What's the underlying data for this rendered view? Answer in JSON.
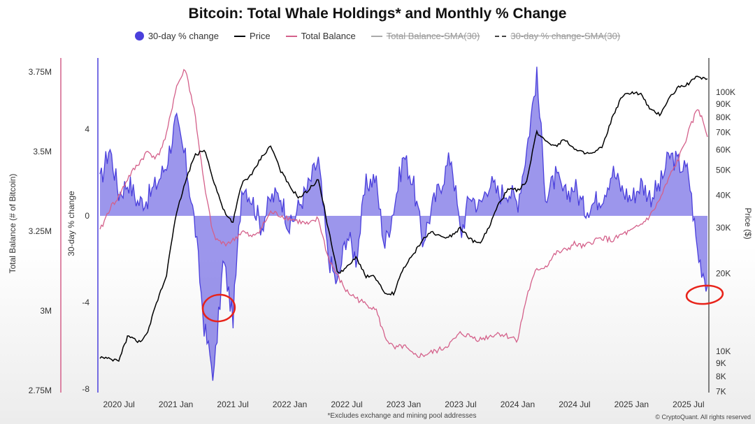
{
  "chart_data": {
    "type": "area",
    "title": "Bitcoin: Total Whale Holdings* and Monthly % Change",
    "legend": {
      "placement": "top",
      "items": [
        {
          "label": "30-day % change",
          "color": "#4a3fdc",
          "style": "dot",
          "visible": true
        },
        {
          "label": "Price",
          "color": "#000000",
          "style": "line",
          "visible": true
        },
        {
          "label": "Total Balance",
          "color": "#d4608a",
          "style": "line",
          "visible": true
        },
        {
          "label": "Total Balance-SMA(30)",
          "color": "#aaaaaa",
          "style": "line",
          "visible": false
        },
        {
          "label": "30-day % change-SMA(30)",
          "color": "#444444",
          "style": "dash",
          "visible": false
        }
      ]
    },
    "x_ticks": [
      "2020 Jul",
      "2021 Jan",
      "2021 Jul",
      "2022 Jan",
      "2022 Jul",
      "2023 Jan",
      "2023 Jul",
      "2024 Jan",
      "2024 Jul",
      "2025 Jan",
      "2025 Jul"
    ],
    "axes": {
      "balance": {
        "title": "Total Balance (# of Bitcoin)",
        "ticks": [
          "3.75M",
          "3.5M",
          "3.25M",
          "3M",
          "2.75M"
        ],
        "range": [
          2750000,
          3750000
        ],
        "color": "#d4608a"
      },
      "pct_change": {
        "title": "30-day % change",
        "ticks": [
          "4",
          "0",
          "-4",
          "-8"
        ],
        "range": [
          -8,
          4
        ],
        "color": "#4a3fdc"
      },
      "price": {
        "title": "Price ($)",
        "scale": "log",
        "ticks": [
          "100K",
          "90K",
          "80K",
          "70K",
          "60K",
          "50K",
          "40K",
          "30K",
          "20K",
          "10K",
          "9K",
          "8K",
          "7K"
        ],
        "range": [
          7000,
          110000
        ]
      }
    },
    "series": [
      {
        "name": "30-day % change",
        "x": [
          "2020-05",
          "2020-06",
          "2020-07",
          "2020-08",
          "2020-09",
          "2020-10",
          "2020-11",
          "2020-12",
          "2021-01",
          "2021-02",
          "2021-03",
          "2021-04",
          "2021-05",
          "2021-06",
          "2021-07",
          "2021-08",
          "2021-09",
          "2021-10",
          "2021-11",
          "2021-12",
          "2022-01",
          "2022-02",
          "2022-03",
          "2022-04",
          "2022-05",
          "2022-06",
          "2022-07",
          "2022-08",
          "2022-09",
          "2022-10",
          "2022-11",
          "2022-12",
          "2023-01",
          "2023-02",
          "2023-03",
          "2023-04",
          "2023-05",
          "2023-06",
          "2023-07",
          "2023-08",
          "2023-09",
          "2023-10",
          "2023-11",
          "2023-12",
          "2024-01",
          "2024-02",
          "2024-03",
          "2024-04",
          "2024-05",
          "2024-06",
          "2024-07",
          "2024-08",
          "2024-09",
          "2024-10",
          "2024-11",
          "2024-12",
          "2025-01",
          "2025-02",
          "2025-03",
          "2025-04",
          "2025-05",
          "2025-06",
          "2025-07",
          "2025-08",
          "2025-09"
        ],
        "values": [
          1.5,
          3.2,
          1.0,
          1.6,
          0.6,
          0.8,
          1.5,
          2.4,
          4.4,
          2.6,
          -0.4,
          -5.2,
          -7.4,
          -2.0,
          -4.8,
          1.6,
          0.8,
          -0.5,
          0.8,
          1.0,
          -0.6,
          0.5,
          1.4,
          2.6,
          -1.8,
          -3.2,
          -0.8,
          -2.0,
          1.4,
          1.8,
          -1.4,
          0.5,
          2.8,
          1.5,
          -1.2,
          0.4,
          1.6,
          2.8,
          -0.9,
          1.0,
          0.4,
          1.6,
          1.0,
          1.2,
          0.6,
          3.2,
          6.5,
          0.8,
          1.8,
          0.9,
          1.4,
          0.3,
          0.6,
          1.0,
          2.1,
          1.2,
          0.8,
          1.5,
          0.9,
          1.4,
          2.8,
          2.4,
          2.0,
          -1.8,
          -3.2
        ]
      },
      {
        "name": "Price",
        "x": [
          "2020-05",
          "2020-06",
          "2020-07",
          "2020-08",
          "2020-09",
          "2020-10",
          "2020-11",
          "2020-12",
          "2021-01",
          "2021-02",
          "2021-03",
          "2021-04",
          "2021-05",
          "2021-06",
          "2021-07",
          "2021-08",
          "2021-09",
          "2021-10",
          "2021-11",
          "2021-12",
          "2022-01",
          "2022-02",
          "2022-03",
          "2022-04",
          "2022-05",
          "2022-06",
          "2022-07",
          "2022-08",
          "2022-09",
          "2022-10",
          "2022-11",
          "2022-12",
          "2023-01",
          "2023-02",
          "2023-03",
          "2023-04",
          "2023-05",
          "2023-06",
          "2023-07",
          "2023-08",
          "2023-09",
          "2023-10",
          "2023-11",
          "2023-12",
          "2024-01",
          "2024-02",
          "2024-03",
          "2024-04",
          "2024-05",
          "2024-06",
          "2024-07",
          "2024-08",
          "2024-09",
          "2024-10",
          "2024-11",
          "2024-12",
          "2025-01",
          "2025-02",
          "2025-03",
          "2025-04",
          "2025-05",
          "2025-06",
          "2025-07",
          "2025-08",
          "2025-09"
        ],
        "values": [
          9500,
          9300,
          9200,
          11600,
          10800,
          11600,
          15500,
          19500,
          33000,
          45000,
          57000,
          60000,
          45000,
          35000,
          31000,
          45000,
          48000,
          56000,
          62000,
          50000,
          43000,
          39000,
          42000,
          46000,
          30000,
          20000,
          21000,
          23000,
          19500,
          19400,
          16500,
          16800,
          21000,
          23500,
          27000,
          29000,
          27500,
          28000,
          30000,
          27000,
          26000,
          30000,
          37000,
          42000,
          42000,
          45000,
          70000,
          65000,
          62000,
          66000,
          60000,
          58000,
          58000,
          62000,
          80000,
          96000,
          100000,
          98000,
          85000,
          82000,
          95000,
          105000,
          108000,
          115000,
          112000
        ]
      },
      {
        "name": "Total Balance",
        "x": [
          "2020-05",
          "2020-06",
          "2020-07",
          "2020-08",
          "2020-09",
          "2020-10",
          "2020-11",
          "2020-12",
          "2021-01",
          "2021-02",
          "2021-03",
          "2021-04",
          "2021-05",
          "2021-06",
          "2021-07",
          "2021-08",
          "2021-09",
          "2021-10",
          "2021-11",
          "2021-12",
          "2022-01",
          "2022-02",
          "2022-03",
          "2022-04",
          "2022-05",
          "2022-06",
          "2022-07",
          "2022-08",
          "2022-09",
          "2022-10",
          "2022-11",
          "2022-12",
          "2023-01",
          "2023-02",
          "2023-03",
          "2023-04",
          "2023-05",
          "2023-06",
          "2023-07",
          "2023-08",
          "2023-09",
          "2023-10",
          "2023-11",
          "2023-12",
          "2024-01",
          "2024-02",
          "2024-03",
          "2024-04",
          "2024-05",
          "2024-06",
          "2024-07",
          "2024-08",
          "2024-09",
          "2024-10",
          "2024-11",
          "2024-12",
          "2025-01",
          "2025-02",
          "2025-03",
          "2025-04",
          "2025-05",
          "2025-06",
          "2025-07",
          "2025-08",
          "2025-09"
        ],
        "values": [
          3250000,
          3320000,
          3360000,
          3420000,
          3460000,
          3500000,
          3480000,
          3550000,
          3700000,
          3760000,
          3620000,
          3390000,
          3230000,
          3210000,
          3220000,
          3250000,
          3230000,
          3260000,
          3310000,
          3300000,
          3290000,
          3280000,
          3270000,
          3290000,
          3170000,
          3110000,
          3060000,
          3040000,
          3020000,
          3010000,
          2920000,
          2880000,
          2890000,
          2860000,
          2860000,
          2870000,
          2880000,
          2900000,
          2930000,
          2920000,
          2910000,
          2920000,
          2930000,
          2920000,
          2910000,
          3050000,
          3130000,
          3140000,
          3180000,
          3190000,
          3210000,
          3200000,
          3220000,
          3230000,
          3220000,
          3240000,
          3250000,
          3270000,
          3300000,
          3350000,
          3420000,
          3480000,
          3560000,
          3640000,
          3550000
        ]
      }
    ],
    "grid": false
  },
  "footnote": "*Excludes exchange and mining pool addresses",
  "credit": "© CryptoQuant. All rights reserved"
}
